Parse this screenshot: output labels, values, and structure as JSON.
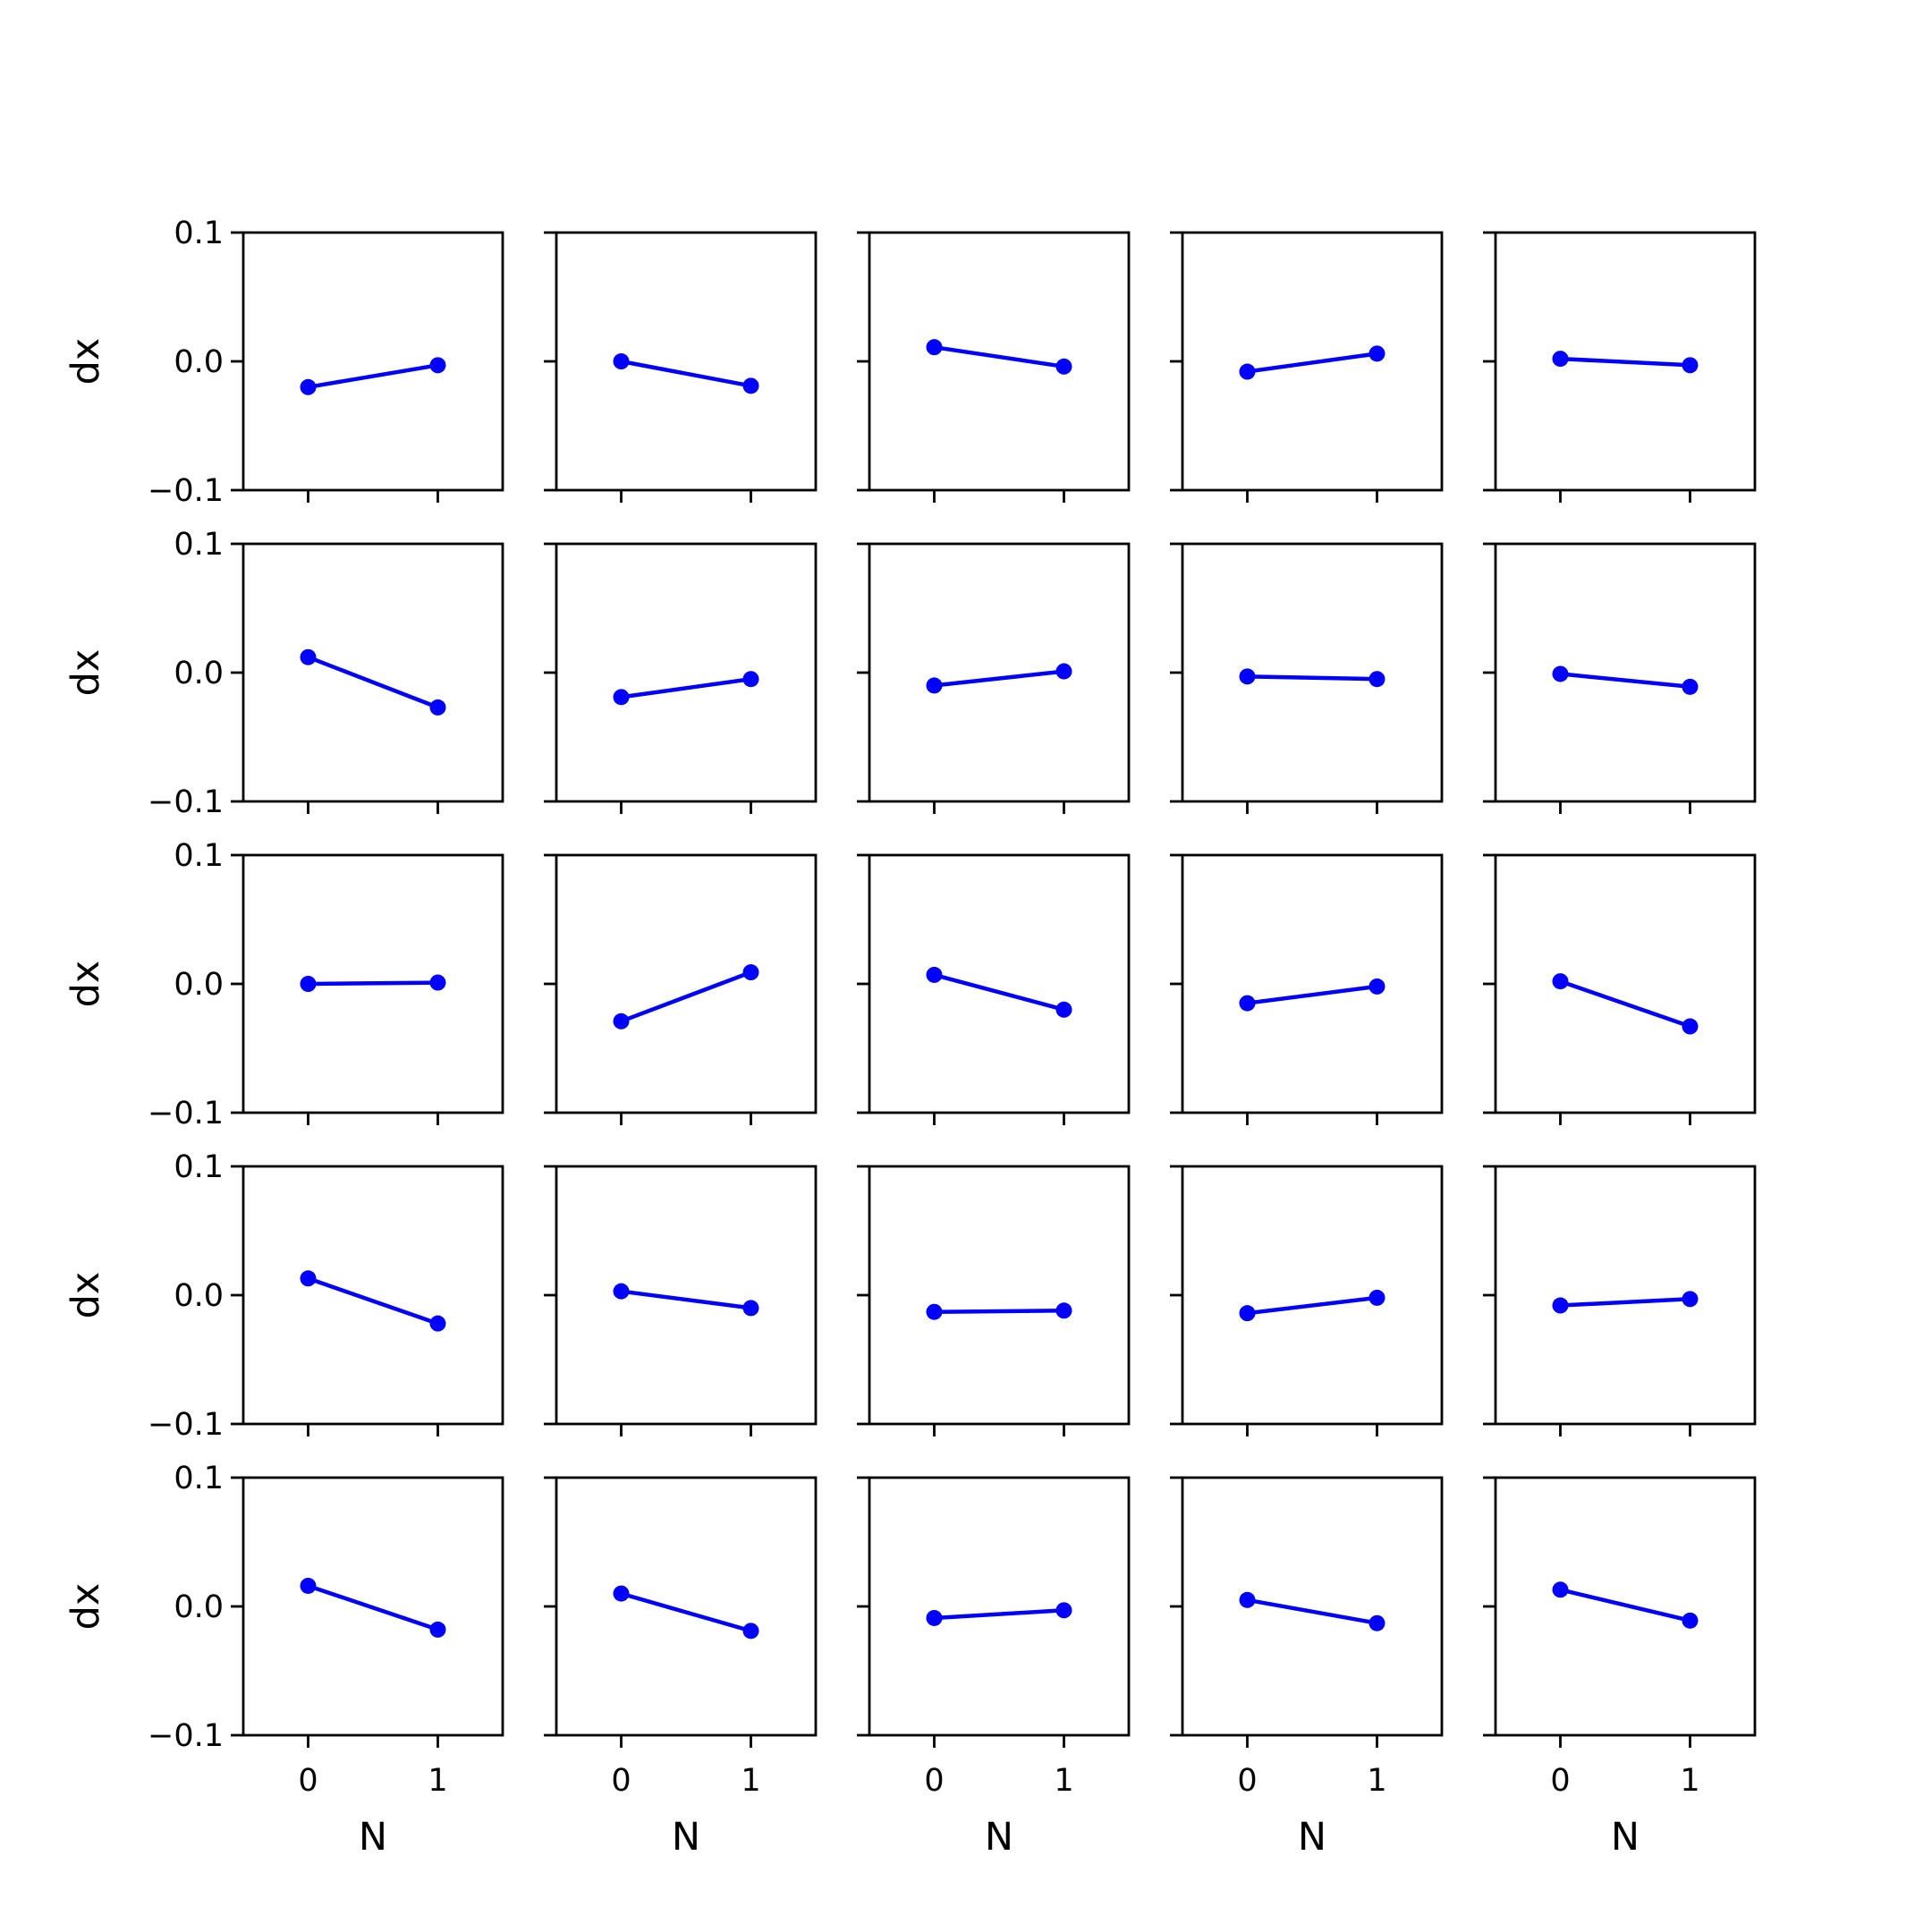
{
  "chart_data": {
    "type": "line",
    "layout": "5x5 small multiples",
    "xlabel": "N",
    "ylabel": "dx",
    "x": [
      0,
      1
    ],
    "xticks": [
      "0",
      "1"
    ],
    "yticks": [
      "−0.1",
      "0.0",
      "0.1"
    ],
    "xlim": [
      -0.5,
      1.5
    ],
    "ylim": [
      -0.1,
      0.1
    ],
    "series_color": "#0000ff",
    "panels": [
      [
        [
          -0.02,
          -0.003
        ],
        [
          0.0,
          -0.019
        ],
        [
          0.011,
          -0.004
        ],
        [
          -0.008,
          0.006
        ],
        [
          0.002,
          -0.003
        ]
      ],
      [
        [
          0.012,
          -0.027
        ],
        [
          -0.019,
          -0.005
        ],
        [
          -0.01,
          0.001
        ],
        [
          -0.003,
          -0.005
        ],
        [
          -0.001,
          -0.011
        ]
      ],
      [
        [
          0.0,
          0.001
        ],
        [
          -0.029,
          0.009
        ],
        [
          0.007,
          -0.02
        ],
        [
          -0.015,
          -0.002
        ],
        [
          0.002,
          -0.033
        ]
      ],
      [
        [
          0.013,
          -0.022
        ],
        [
          0.003,
          -0.01
        ],
        [
          -0.013,
          -0.012
        ],
        [
          -0.014,
          -0.002
        ],
        [
          -0.008,
          -0.003
        ]
      ],
      [
        [
          0.016,
          -0.018
        ],
        [
          0.01,
          -0.019
        ],
        [
          -0.009,
          -0.003
        ],
        [
          0.005,
          -0.013
        ],
        [
          0.013,
          -0.011
        ]
      ]
    ]
  }
}
